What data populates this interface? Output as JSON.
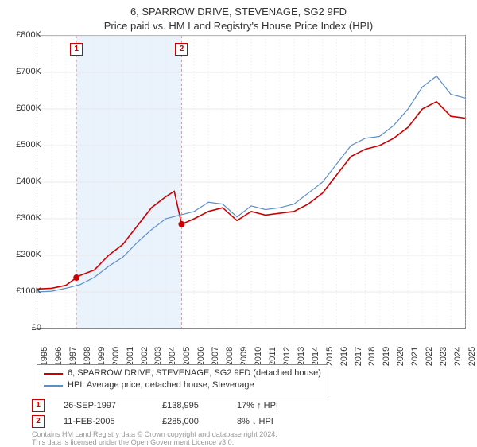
{
  "title": {
    "line1": "6, SPARROW DRIVE, STEVENAGE, SG2 9FD",
    "line2": "Price paid vs. HM Land Registry's House Price Index (HPI)"
  },
  "chart": {
    "type": "line",
    "background_color": "#ffffff",
    "border_color": "#888888",
    "grid_color": "#e8e8e8",
    "x": {
      "min": 1995,
      "max": 2025,
      "tick_step": 1,
      "label_fontsize": 11
    },
    "y": {
      "min": 0,
      "max": 800000,
      "tick_step": 100000,
      "prefix": "£",
      "suffix": "K",
      "label_fontsize": 11
    },
    "y_ticks": [
      "£0",
      "£100K",
      "£200K",
      "£300K",
      "£400K",
      "£500K",
      "£600K",
      "£700K",
      "£800K"
    ],
    "highlight_band": {
      "from": 1997.74,
      "to": 2005.12,
      "fill": "#eaf2fb",
      "dash_color": "#d6a0a0"
    },
    "series": [
      {
        "id": "price_paid",
        "label": "6, SPARROW DRIVE, STEVENAGE, SG2 9FD (detached house)",
        "color": "#cc0000",
        "line_width": 1.6,
        "points": [
          [
            1995,
            108000
          ],
          [
            1996,
            110000
          ],
          [
            1997,
            118000
          ],
          [
            1997.74,
            138995
          ],
          [
            1998,
            145000
          ],
          [
            1999,
            160000
          ],
          [
            2000,
            200000
          ],
          [
            2001,
            230000
          ],
          [
            2002,
            280000
          ],
          [
            2003,
            330000
          ],
          [
            2004,
            360000
          ],
          [
            2004.6,
            375000
          ],
          [
            2005.12,
            285000
          ],
          [
            2006,
            300000
          ],
          [
            2007,
            320000
          ],
          [
            2008,
            330000
          ],
          [
            2009,
            295000
          ],
          [
            2010,
            320000
          ],
          [
            2011,
            310000
          ],
          [
            2012,
            315000
          ],
          [
            2013,
            320000
          ],
          [
            2014,
            340000
          ],
          [
            2015,
            370000
          ],
          [
            2016,
            420000
          ],
          [
            2017,
            470000
          ],
          [
            2018,
            490000
          ],
          [
            2019,
            500000
          ],
          [
            2020,
            520000
          ],
          [
            2021,
            550000
          ],
          [
            2022,
            600000
          ],
          [
            2023,
            620000
          ],
          [
            2024,
            580000
          ],
          [
            2025,
            575000
          ]
        ]
      },
      {
        "id": "hpi",
        "label": "HPI: Average price, detached house, Stevenage",
        "color": "#5b8fc7",
        "line_width": 1.2,
        "points": [
          [
            1995,
            100000
          ],
          [
            1996,
            102000
          ],
          [
            1997,
            110000
          ],
          [
            1998,
            120000
          ],
          [
            1999,
            140000
          ],
          [
            2000,
            170000
          ],
          [
            2001,
            195000
          ],
          [
            2002,
            235000
          ],
          [
            2003,
            270000
          ],
          [
            2004,
            300000
          ],
          [
            2005,
            310000
          ],
          [
            2006,
            320000
          ],
          [
            2007,
            345000
          ],
          [
            2008,
            340000
          ],
          [
            2009,
            305000
          ],
          [
            2010,
            335000
          ],
          [
            2011,
            325000
          ],
          [
            2012,
            330000
          ],
          [
            2013,
            340000
          ],
          [
            2014,
            370000
          ],
          [
            2015,
            400000
          ],
          [
            2016,
            450000
          ],
          [
            2017,
            500000
          ],
          [
            2018,
            520000
          ],
          [
            2019,
            525000
          ],
          [
            2020,
            555000
          ],
          [
            2021,
            600000
          ],
          [
            2022,
            660000
          ],
          [
            2023,
            690000
          ],
          [
            2024,
            640000
          ],
          [
            2025,
            630000
          ]
        ]
      }
    ],
    "markers": [
      {
        "id": "1",
        "x": 1997.74,
        "y": 138995,
        "color": "#cc0000"
      },
      {
        "id": "2",
        "x": 2005.12,
        "y": 285000,
        "color": "#cc0000"
      }
    ]
  },
  "legend": {
    "items": [
      {
        "color": "#cc0000",
        "label": "6, SPARROW DRIVE, STEVENAGE, SG2 9FD (detached house)"
      },
      {
        "color": "#5b8fc7",
        "label": "HPI: Average price, detached house, Stevenage"
      }
    ]
  },
  "sales": [
    {
      "marker": "1",
      "date": "26-SEP-1997",
      "price": "£138,995",
      "pct": "17% ↑ HPI"
    },
    {
      "marker": "2",
      "date": "11-FEB-2005",
      "price": "£285,000",
      "pct": "8% ↓ HPI"
    }
  ],
  "footnote": {
    "line1": "Contains HM Land Registry data © Crown copyright and database right 2024.",
    "line2": "This data is licensed under the Open Government Licence v3.0."
  }
}
